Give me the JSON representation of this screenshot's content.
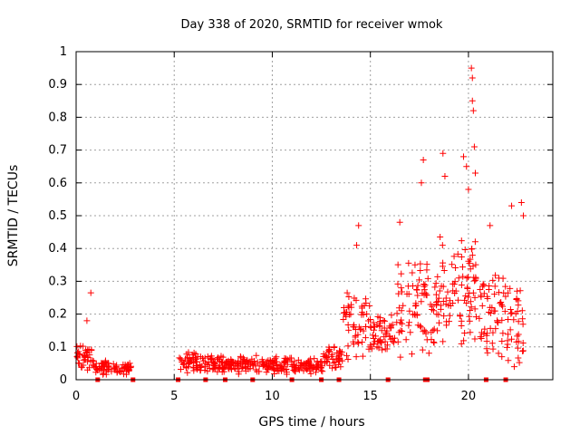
{
  "chart_data": {
    "type": "scatter",
    "title": "Day 338 of 2020, SRMTID for receiver wmok",
    "xlabel": "GPS time / hours",
    "ylabel": "SRMTID / TECUs",
    "xlim": [
      0,
      24.3
    ],
    "ylim": [
      0,
      1
    ],
    "xticks": [
      0,
      5,
      10,
      15,
      20
    ],
    "yticks": [
      0,
      0.1,
      0.2,
      0.3,
      0.4,
      0.5,
      0.6,
      0.7,
      0.8,
      0.9,
      1
    ],
    "ytick_labels": [
      "0",
      "0.1",
      "0.2",
      "0.3",
      "0.4",
      "0.5",
      "0.6",
      "0.7",
      "0.8",
      "0.9",
      "1"
    ],
    "grid": true,
    "marker": "+",
    "color": "#ff0000",
    "series": [
      {
        "name": "SRMTID",
        "segments": [
          {
            "start": 0.0,
            "end": 1.0,
            "base": 0.07,
            "spread": 0.05
          },
          {
            "start": 1.0,
            "end": 2.8,
            "base": 0.035,
            "spread": 0.025
          },
          {
            "start": 5.2,
            "end": 7.5,
            "base": 0.05,
            "spread": 0.035
          },
          {
            "start": 7.5,
            "end": 11.0,
            "base": 0.045,
            "spread": 0.03
          },
          {
            "start": 11.0,
            "end": 12.6,
            "base": 0.04,
            "spread": 0.03
          },
          {
            "start": 12.6,
            "end": 13.6,
            "base": 0.07,
            "spread": 0.04
          },
          {
            "start": 13.6,
            "end": 15.0,
            "base": 0.17,
            "spread": 0.12
          },
          {
            "start": 15.0,
            "end": 16.3,
            "base": 0.14,
            "spread": 0.07
          },
          {
            "start": 16.3,
            "end": 18.5,
            "base": 0.22,
            "spread": 0.16
          },
          {
            "start": 18.5,
            "end": 20.6,
            "base": 0.27,
            "spread": 0.2
          },
          {
            "start": 20.6,
            "end": 21.6,
            "base": 0.2,
            "spread": 0.14
          },
          {
            "start": 21.6,
            "end": 22.8,
            "base": 0.17,
            "spread": 0.15
          }
        ],
        "peaks": [
          {
            "x": 0.75,
            "y": 0.265
          },
          {
            "x": 0.55,
            "y": 0.18
          },
          {
            "x": 14.4,
            "y": 0.47
          },
          {
            "x": 14.3,
            "y": 0.41
          },
          {
            "x": 17.7,
            "y": 0.67
          },
          {
            "x": 17.6,
            "y": 0.6
          },
          {
            "x": 18.7,
            "y": 0.69
          },
          {
            "x": 18.8,
            "y": 0.62
          },
          {
            "x": 19.75,
            "y": 0.68
          },
          {
            "x": 19.9,
            "y": 0.65
          },
          {
            "x": 20.0,
            "y": 0.58
          },
          {
            "x": 20.15,
            "y": 0.95
          },
          {
            "x": 20.2,
            "y": 0.92
          },
          {
            "x": 20.2,
            "y": 0.85
          },
          {
            "x": 20.25,
            "y": 0.82
          },
          {
            "x": 20.3,
            "y": 0.71
          },
          {
            "x": 20.35,
            "y": 0.63
          },
          {
            "x": 22.2,
            "y": 0.53
          },
          {
            "x": 22.7,
            "y": 0.54
          },
          {
            "x": 22.8,
            "y": 0.5
          },
          {
            "x": 16.5,
            "y": 0.48
          },
          {
            "x": 21.1,
            "y": 0.47
          }
        ]
      }
    ],
    "baseline_markers": [
      1.1,
      2.9,
      5.2,
      6.6,
      7.6,
      9.0,
      11.0,
      12.5,
      13.4,
      15.9,
      17.8,
      17.9,
      20.9,
      21.9
    ]
  }
}
